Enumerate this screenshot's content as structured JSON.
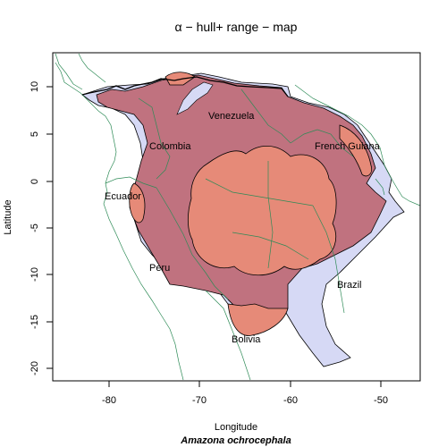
{
  "title": "α − hull+ range − map",
  "axes": {
    "xlabel": "Longitude",
    "ylabel": "Latitude",
    "x_ticks": [
      "-80",
      "-70",
      "-60",
      "-50"
    ],
    "y_ticks": [
      "10",
      "5",
      "0",
      "-5",
      "-10",
      "-15",
      "-20"
    ]
  },
  "species": "Amazona ochrocephala",
  "country_labels": [
    {
      "name": "Venezuela",
      "lon": -66.5,
      "lat": 6.8
    },
    {
      "name": "Colombia",
      "lon": -72.8,
      "lat": 3.8
    },
    {
      "name": "French Guiana",
      "lon": -53.5,
      "lat": 3.8
    },
    {
      "name": "Ecuador",
      "lon": -78.2,
      "lat": -1.5
    },
    {
      "name": "Peru",
      "lon": -74.2,
      "lat": -9.2
    },
    {
      "name": "Brazil",
      "lon": -52.7,
      "lat": -11.0
    },
    {
      "name": "Bolivia",
      "lon": -64.2,
      "lat": -16.8
    }
  ],
  "colors": {
    "hull_fill": "#d6d9f5",
    "overlap_fill": "#c0727f",
    "range_fill": "#e68a78",
    "borders": "#2e8b57",
    "outline": "#000000"
  },
  "chart_data": {
    "type": "map",
    "title": "α − hull+ range − map",
    "xlabel": "Longitude",
    "ylabel": "Latitude",
    "xlim": [
      -86.5,
      -45.5
    ],
    "ylim": [
      -21,
      13.5
    ],
    "subtitle": "Amazona ochrocephala"
  }
}
